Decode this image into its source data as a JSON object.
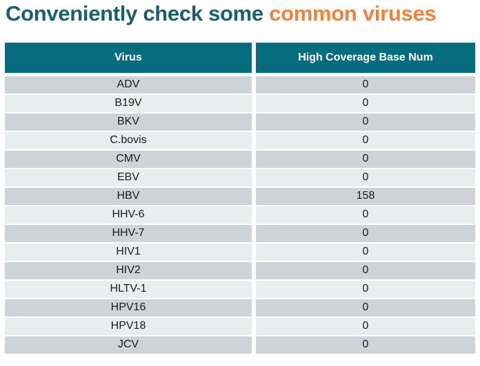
{
  "title": {
    "teal_text": "Conveniently check some ",
    "orange_text": "common viruses"
  },
  "colors": {
    "title_teal": "#1A5E6E",
    "title_orange": "#F08138",
    "header_bg": "#076C7E",
    "header_text": "#FFFFFF",
    "row_odd_bg": "#CDD3D6",
    "row_even_bg": "#E9EDEE",
    "cell_text": "#1A1A1A"
  },
  "chart_data": {
    "type": "table",
    "title": "Conveniently check some common viruses",
    "columns": [
      "Virus",
      "High Coverage Base Num"
    ],
    "rows": [
      {
        "virus": "ADV",
        "high_coverage_base_num": 0
      },
      {
        "virus": "B19V",
        "high_coverage_base_num": 0
      },
      {
        "virus": "BKV",
        "high_coverage_base_num": 0
      },
      {
        "virus": "C.bovis",
        "high_coverage_base_num": 0
      },
      {
        "virus": "CMV",
        "high_coverage_base_num": 0
      },
      {
        "virus": "EBV",
        "high_coverage_base_num": 0
      },
      {
        "virus": "HBV",
        "high_coverage_base_num": 158
      },
      {
        "virus": "HHV-6",
        "high_coverage_base_num": 0
      },
      {
        "virus": "HHV-7",
        "high_coverage_base_num": 0
      },
      {
        "virus": "HIV1",
        "high_coverage_base_num": 0
      },
      {
        "virus": "HIV2",
        "high_coverage_base_num": 0
      },
      {
        "virus": "HLTV-1",
        "high_coverage_base_num": 0
      },
      {
        "virus": "HPV16",
        "high_coverage_base_num": 0
      },
      {
        "virus": "HPV18",
        "high_coverage_base_num": 0
      },
      {
        "virus": "JCV",
        "high_coverage_base_num": 0
      }
    ]
  }
}
